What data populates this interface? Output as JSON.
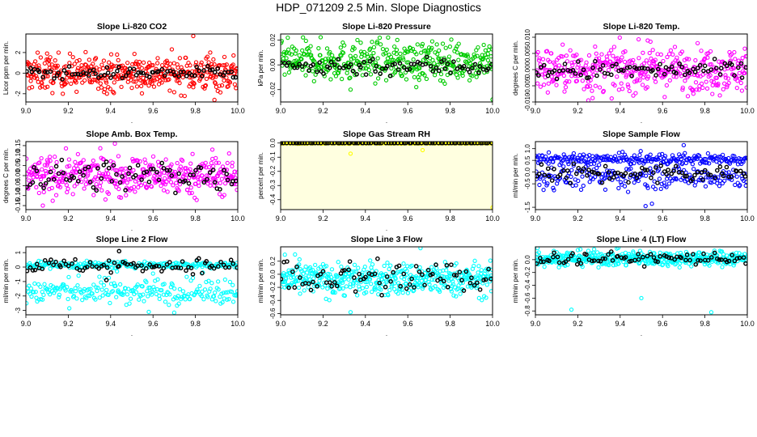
{
  "page_title": "HDP_071209  2.5 Min. Slope Diagnostics",
  "colors": {
    "red": "#ff0000",
    "green": "#00cc00",
    "magenta": "#ff00ff",
    "yellow": "#ffff00",
    "blue": "#0000ff",
    "cyan": "#00ffff",
    "black": "#000000",
    "yellow_bg": "#ffffe0"
  },
  "chart_data": [
    {
      "type": "scatter",
      "title": "Slope Li-820 CO2",
      "ylabel": "Licor ppm per min.",
      "xlabel": ".",
      "xlim": [
        9.0,
        10.0
      ],
      "ylim": [
        -2.8,
        3.8
      ],
      "xticks": [
        "9.0",
        "9.2",
        "9.4",
        "9.6",
        "9.8",
        "10.0"
      ],
      "yticks": [
        "-2",
        "0",
        "2"
      ],
      "series": [
        {
          "name": "all",
          "color": "red",
          "count": 420,
          "center": 0.0,
          "spread": 0.9,
          "outliers": [
            [
              9.1,
              1.9
            ],
            [
              9.79,
              3.6
            ],
            [
              9.89,
              -2.6
            ],
            [
              9.87,
              2.0
            ]
          ]
        },
        {
          "name": "2.5 min",
          "color": "black",
          "count": 80,
          "center": 0.0,
          "spread": 0.3,
          "outliers": []
        }
      ]
    },
    {
      "type": "scatter",
      "title": "Slope Li-820 Pressure",
      "ylabel": "kPa per min.",
      "xlabel": ".",
      "xlim": [
        9.0,
        10.0
      ],
      "ylim": [
        -0.03,
        0.025
      ],
      "xticks": [
        "9.0",
        "9.2",
        "9.4",
        "9.6",
        "9.8",
        "10.0"
      ],
      "yticks": [
        "-0.02",
        "0.00",
        "0.02"
      ],
      "series": [
        {
          "name": "all",
          "color": "green",
          "count": 420,
          "center": 0.003,
          "spread": 0.008,
          "outliers": [
            [
              9.33,
              -0.02
            ],
            [
              10.0,
              -0.028
            ],
            [
              9.64,
              -0.018
            ]
          ]
        },
        {
          "name": "2.5 min",
          "color": "black",
          "count": 80,
          "center": -0.001,
          "spread": 0.004,
          "outliers": []
        }
      ]
    },
    {
      "type": "scatter",
      "title": "Slope Li-820 Temp.",
      "ylabel": "degrees C per min.",
      "xlabel": ".",
      "xlim": [
        9.0,
        10.0
      ],
      "ylim": [
        -0.01,
        0.011
      ],
      "xticks": [
        "9.0",
        "9.2",
        "9.4",
        "9.6",
        "9.8",
        "10.0"
      ],
      "yticks": [
        "-0.010",
        "-0.005",
        "0.000",
        "0.005",
        "0.010"
      ],
      "series": [
        {
          "name": "all",
          "color": "magenta",
          "count": 420,
          "center": 0.0,
          "spread": 0.0035,
          "outliers": [
            [
              9.25,
              -0.0095
            ],
            [
              9.27,
              -0.0088
            ],
            [
              9.53,
              0.009
            ]
          ]
        },
        {
          "name": "2.5 min",
          "color": "black",
          "count": 80,
          "center": -0.0003,
          "spread": 0.0015,
          "outliers": []
        }
      ]
    },
    {
      "type": "scatter",
      "title": "Slope Amb. Box Temp.",
      "ylabel": "degrees C per min.",
      "xlabel": ".",
      "xlim": [
        9.0,
        10.0
      ],
      "ylim": [
        -0.17,
        0.17
      ],
      "xticks": [
        "9.0",
        "9.2",
        "9.4",
        "9.6",
        "9.8",
        "10.0"
      ],
      "yticks": [
        "-0.15",
        "-0.10",
        "-0.05",
        "0.00",
        "0.05",
        "0.10",
        "0.15"
      ],
      "series": [
        {
          "name": "all",
          "color": "magenta",
          "count": 420,
          "center": 0.0,
          "spread": 0.05,
          "outliers": [
            [
              9.42,
              0.16
            ],
            [
              9.08,
              -0.15
            ],
            [
              9.88,
              0.13
            ]
          ]
        },
        {
          "name": "2.5 min",
          "color": "black",
          "count": 80,
          "center": 0.0,
          "spread": 0.04,
          "outliers": []
        }
      ]
    },
    {
      "type": "scatter",
      "title": "Slope Gas Stream RH",
      "ylabel": "percent per min.",
      "xlabel": ".",
      "xlim": [
        9.0,
        10.0
      ],
      "ylim": [
        -0.47,
        0.01
      ],
      "xticks": [
        "9.0",
        "9.2",
        "9.4",
        "9.6",
        "9.8",
        "10.0"
      ],
      "yticks": [
        "-0.4",
        "-0.3",
        "-0.2",
        "-0.1",
        "0.0"
      ],
      "series": [
        {
          "name": "all",
          "color": "yellow",
          "count": 420,
          "center": 0.0,
          "spread": 0.002,
          "outliers": [
            [
              9.33,
              -0.075
            ],
            [
              9.67,
              -0.05
            ],
            [
              10.0,
              -0.455
            ]
          ]
        },
        {
          "name": "2.5 min",
          "color": "black",
          "count": 80,
          "center": 0.0,
          "spread": 0.0,
          "outliers": []
        }
      ]
    },
    {
      "type": "scatter",
      "title": "Slope Sample Flow",
      "ylabel": "ml/min per min.",
      "xlabel": ".",
      "xlim": [
        9.0,
        10.0
      ],
      "ylim": [
        -1.6,
        1.3
      ],
      "xticks": [
        "9.0",
        "9.2",
        "9.4",
        "9.6",
        "9.8",
        "10.0"
      ],
      "yticks": [
        "-1.5",
        "-0.5",
        "0.0",
        "0.5",
        "1.0"
      ],
      "series": [
        {
          "name": "all (upper band)",
          "color": "blue",
          "count": 240,
          "center": 0.55,
          "spread": 0.12,
          "outliers": [
            [
              9.7,
              1.15
            ]
          ]
        },
        {
          "name": "all (lower band)",
          "color": "blue",
          "count": 200,
          "center": -0.2,
          "spread": 0.25,
          "outliers": [
            [
              9.52,
              -1.45
            ],
            [
              9.55,
              -1.35
            ],
            [
              9.33,
              -0.75
            ]
          ]
        },
        {
          "name": "2.5 min",
          "color": "black",
          "count": 80,
          "center": -0.1,
          "spread": 0.22,
          "outliers": []
        }
      ]
    },
    {
      "type": "scatter",
      "title": "Slope Line 2 Flow",
      "ylabel": "ml/min per min.",
      "xlabel": ".",
      "xlim": [
        9.0,
        10.0
      ],
      "ylim": [
        -3.3,
        1.4
      ],
      "xticks": [
        "9.0",
        "9.2",
        "9.4",
        "9.6",
        "9.8",
        "10.0"
      ],
      "yticks": [
        "-3",
        "-2",
        "-1",
        "0",
        "1"
      ],
      "series": [
        {
          "name": "all (upper band)",
          "color": "cyan",
          "count": 220,
          "center": 0.15,
          "spread": 0.12,
          "outliers": []
        },
        {
          "name": "all (lower band)",
          "color": "cyan",
          "count": 230,
          "center": -1.65,
          "spread": 0.45,
          "outliers": [
            [
              9.58,
              -3.1
            ],
            [
              9.7,
              -3.15
            ],
            [
              9.43,
              -0.3
            ],
            [
              9.6,
              -0.45
            ]
          ]
        },
        {
          "name": "2.5 min",
          "color": "black",
          "count": 80,
          "center": 0.1,
          "spread": 0.25,
          "outliers": [
            [
              9.44,
              1.1
            ],
            [
              9.38,
              -0.9
            ]
          ]
        }
      ]
    },
    {
      "type": "scatter",
      "title": "Slope Line 3 Flow",
      "ylabel": "ml/min per min.",
      "xlabel": ".",
      "xlim": [
        9.0,
        10.0
      ],
      "ylim": [
        -0.62,
        0.42
      ],
      "xticks": [
        "9.0",
        "9.2",
        "9.4",
        "9.6",
        "9.8",
        "10.0"
      ],
      "yticks": [
        "-0.6",
        "-0.4",
        "-0.2",
        "0.0",
        "0.2"
      ],
      "series": [
        {
          "name": "all",
          "color": "cyan",
          "count": 450,
          "center": -0.08,
          "spread": 0.13,
          "outliers": [
            [
              9.33,
              -0.58
            ],
            [
              9.66,
              0.4
            ],
            [
              9.02,
              0.3
            ]
          ]
        },
        {
          "name": "2.5 min",
          "color": "black",
          "count": 80,
          "center": -0.05,
          "spread": 0.16,
          "outliers": []
        }
      ]
    },
    {
      "type": "scatter",
      "title": "Slope Line 4 (LT) Flow",
      "ylabel": "ml/min per min.",
      "xlabel": ".",
      "xlim": [
        9.0,
        10.0
      ],
      "ylim": [
        -0.86,
        0.2
      ],
      "xticks": [
        "9.0",
        "9.2",
        "9.4",
        "9.6",
        "9.8",
        "10.0"
      ],
      "yticks": [
        "-0.8",
        "-0.6",
        "-0.4",
        "-0.2",
        "0.0"
      ],
      "series": [
        {
          "name": "all",
          "color": "cyan",
          "count": 430,
          "center": 0.02,
          "spread": 0.06,
          "outliers": [
            [
              9.17,
              -0.78
            ],
            [
              9.5,
              -0.6
            ],
            [
              9.83,
              -0.82
            ],
            [
              9.01,
              0.18
            ]
          ]
        },
        {
          "name": "2.5 min",
          "color": "black",
          "count": 80,
          "center": 0.02,
          "spread": 0.05,
          "outliers": []
        }
      ]
    }
  ]
}
